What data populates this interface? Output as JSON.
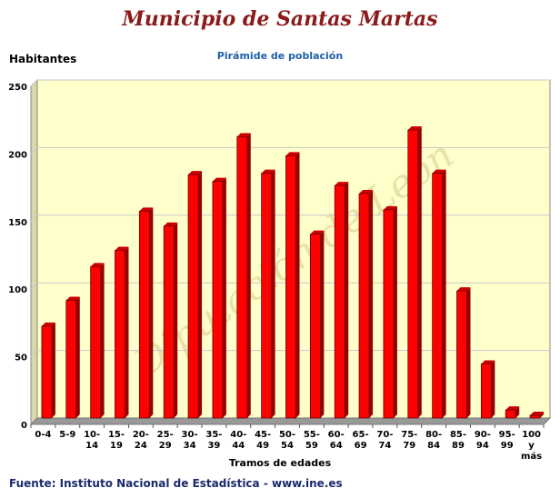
{
  "title": "Municipio de Santas Martas",
  "subtitle": "Pirámide de población",
  "source": "Fuente: Instituto Nacional de Estadística - www.ine.es",
  "watermark": "Diputación de León",
  "colors": {
    "plot_bg": "#ffffcc",
    "bar": "#ff0000",
    "bar_dark": "#990000",
    "grid": "#c8c8c8",
    "title": "#8b1a1a",
    "subtitle": "#1f5fa8"
  },
  "chart_data": {
    "type": "bar",
    "ylabel": "Habitantes",
    "xlabel": "Tramos de edades",
    "ylim": [
      0,
      250
    ],
    "yticks": [
      0,
      50,
      100,
      150,
      200,
      250
    ],
    "grid": true,
    "categories": [
      [
        "0-4"
      ],
      [
        "5-9"
      ],
      [
        "10-",
        "14"
      ],
      [
        "15-",
        "19"
      ],
      [
        "20-",
        "24"
      ],
      [
        "25-",
        "29"
      ],
      [
        "30-",
        "34"
      ],
      [
        "35-",
        "39"
      ],
      [
        "40-",
        "44"
      ],
      [
        "45-",
        "49"
      ],
      [
        "50-",
        "54"
      ],
      [
        "55-",
        "59"
      ],
      [
        "60-",
        "64"
      ],
      [
        "65-",
        "69"
      ],
      [
        "70-",
        "74"
      ],
      [
        "75-",
        "79"
      ],
      [
        "80-",
        "84"
      ],
      [
        "85-",
        "89"
      ],
      [
        "90-",
        "94"
      ],
      [
        "95-",
        "99"
      ],
      [
        "100",
        "y",
        "más"
      ]
    ],
    "values": [
      68,
      87,
      112,
      124,
      153,
      142,
      180,
      175,
      208,
      181,
      194,
      136,
      172,
      166,
      154,
      213,
      181,
      94,
      40,
      6,
      2
    ]
  }
}
